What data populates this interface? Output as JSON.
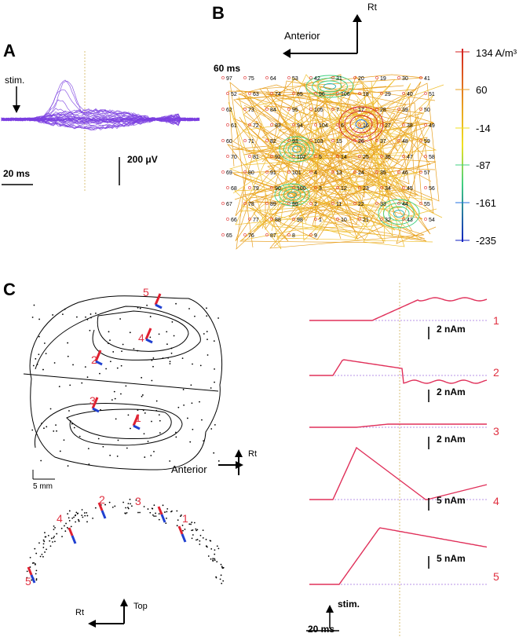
{
  "panel_a": {
    "letter": "A",
    "stim_label": "stim.",
    "vscale_label": "200 μV",
    "hscale_label": "20 ms",
    "trace_color": "#7b3fe0",
    "marker_color": "#d9c27a"
  },
  "panel_b": {
    "letter": "B",
    "time_label": "60 ms",
    "dir_up": "Rt",
    "dir_left": "Anterior",
    "colorbar": {
      "ticks": [
        "134 A/m³",
        "60",
        "-14",
        "-87",
        "-161",
        "-235"
      ],
      "colors": [
        "#d42020",
        "#e8a020",
        "#f0e020",
        "#40d080",
        "#2070e0",
        "#1020c0"
      ]
    },
    "electrode_numbers": [
      "97",
      "75",
      "64",
      "53",
      "42",
      "31",
      "20",
      "19",
      "30",
      "41",
      "52",
      "63",
      "74",
      "85",
      "96",
      "106",
      "18",
      "29",
      "40",
      "51",
      "62",
      "73",
      "84",
      "95",
      "105",
      "7",
      "17",
      "28",
      "39",
      "50",
      "61",
      "72",
      "83",
      "94",
      "104",
      "6",
      "16",
      "27",
      "38",
      "49",
      "60",
      "71",
      "82",
      "93",
      "103",
      "15",
      "26",
      "37",
      "48",
      "59",
      "70",
      "81",
      "92",
      "102",
      "5",
      "14",
      "25",
      "36",
      "47",
      "58",
      "69",
      "80",
      "91",
      "101",
      "4",
      "13",
      "24",
      "35",
      "46",
      "57",
      "68",
      "79",
      "90",
      "100",
      "3",
      "12",
      "23",
      "34",
      "45",
      "56",
      "67",
      "78",
      "89",
      "99",
      "2",
      "11",
      "22",
      "33",
      "44",
      "55",
      "66",
      "77",
      "88",
      "98",
      "1",
      "10",
      "21",
      "32",
      "43",
      "54",
      "65",
      "76",
      "87",
      "8",
      "9"
    ]
  },
  "panel_c": {
    "letter": "C",
    "scale_label": "5 mm",
    "dir_right": "Rt",
    "dir_down": "Anterior",
    "lateral_dir_right": "Rt",
    "lateral_dir_up": "Top",
    "dipole_labels": [
      "5",
      "4",
      "2",
      "3",
      "1"
    ],
    "lateral_dipole_labels": [
      "2",
      "3",
      "4",
      "1",
      "5"
    ],
    "traces": [
      {
        "num": "1",
        "scale": "2 nAm"
      },
      {
        "num": "2",
        "scale": "2 nAm"
      },
      {
        "num": "3",
        "scale": "2 nAm"
      },
      {
        "num": "4",
        "scale": "5 nAm"
      },
      {
        "num": "5",
        "scale": "5 nAm"
      }
    ],
    "stim_label": "stim.",
    "time_scale": "20 ms",
    "trace_color": "#e0305a",
    "baseline_color": "#a070e0"
  }
}
